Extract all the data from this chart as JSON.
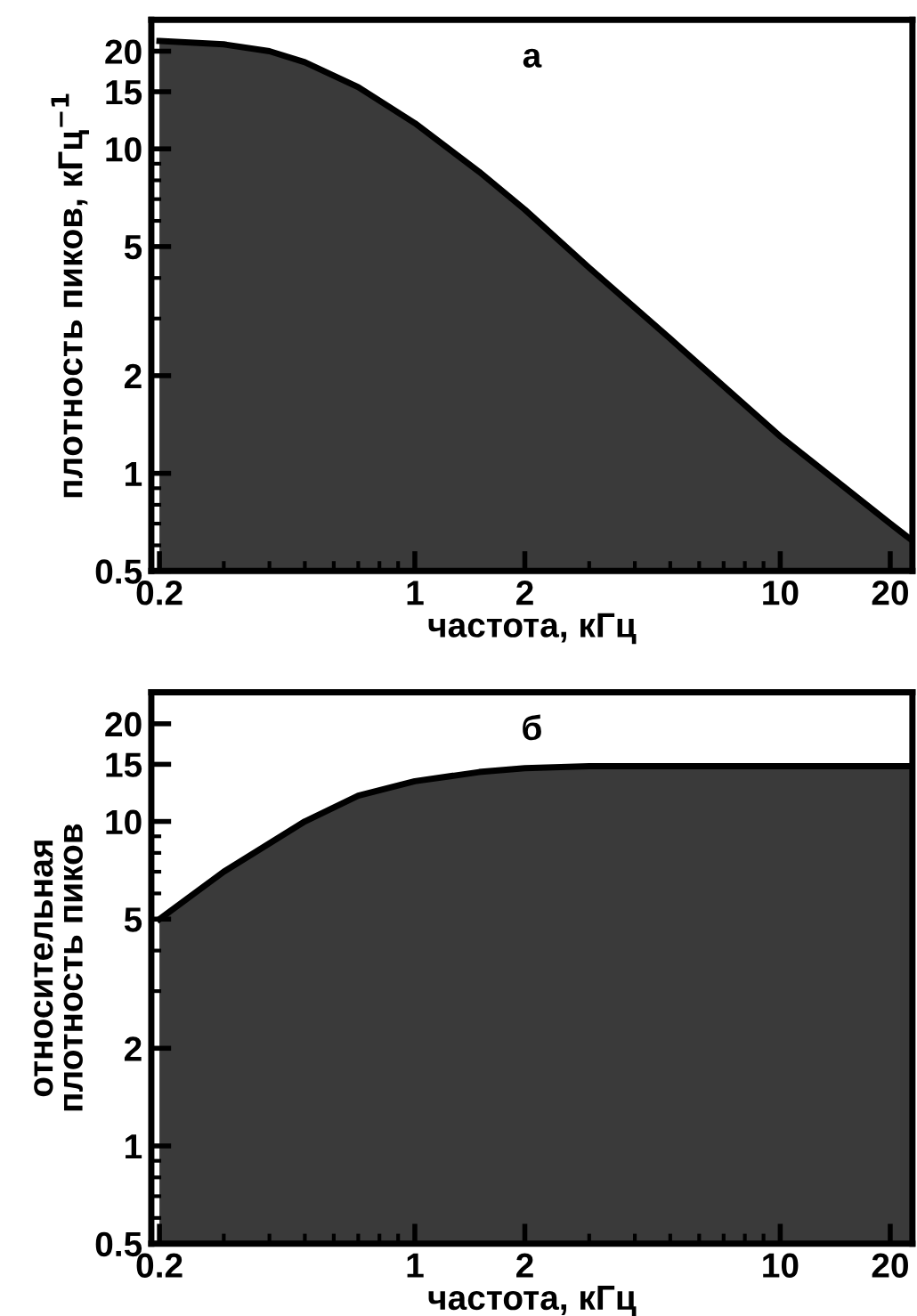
{
  "chart_data": [
    {
      "type": "area",
      "title": "а",
      "xlabel": "частота, кГц",
      "ylabel": "плотность пиков, кГц$^{−1}$",
      "log": "xy",
      "color": "#3a3a3a",
      "x": [
        0.2,
        0.3,
        0.4,
        0.5,
        0.7,
        1,
        1.5,
        2,
        3,
        5,
        10,
        20,
        23
      ],
      "values": [
        21.5,
        21,
        20,
        18.5,
        15.5,
        12,
        8.5,
        6.5,
        4.3,
        2.6,
        1.3,
        0.7,
        0.62
      ],
      "xlim": [
        0.19,
        23
      ],
      "ylim": [
        0.5,
        25
      ],
      "xticks": [
        0.2,
        1,
        2,
        10,
        20
      ],
      "yticks": [
        0.5,
        1,
        2,
        5,
        10,
        15,
        20
      ]
    },
    {
      "type": "area",
      "title": "б",
      "xlabel": "частота, кГц",
      "ylabel": "относительная\nплотность пиков",
      "log": "xy",
      "color": "#3a3a3a",
      "x": [
        0.2,
        0.3,
        0.5,
        0.7,
        1,
        1.5,
        2,
        3,
        23
      ],
      "values": [
        5,
        7,
        10,
        12,
        13.3,
        14.2,
        14.6,
        14.8,
        14.8
      ],
      "xlim": [
        0.19,
        23
      ],
      "ylim": [
        0.5,
        25
      ],
      "xticks": [
        0.2,
        1,
        2,
        10,
        20
      ],
      "yticks": [
        0.5,
        1,
        2,
        5,
        10,
        15,
        20
      ]
    }
  ]
}
